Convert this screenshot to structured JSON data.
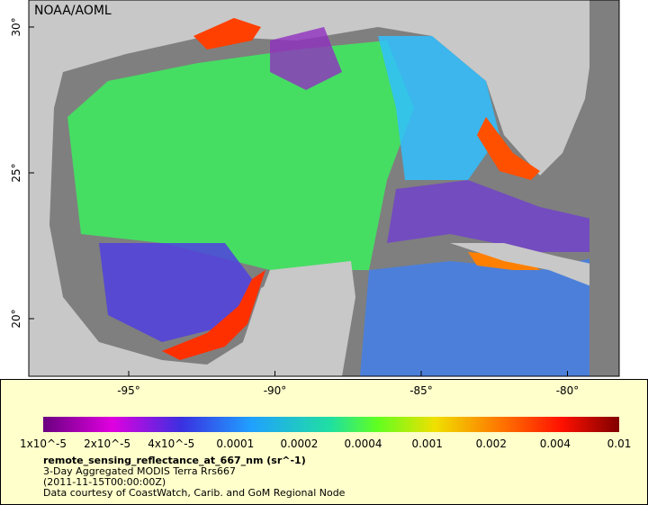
{
  "map": {
    "credit": "NOAA/AOML",
    "lat_ticks": [
      {
        "value": 30,
        "label": "30°"
      },
      {
        "value": 25,
        "label": "25°"
      },
      {
        "value": 20,
        "label": "20°"
      }
    ],
    "lon_ticks": [
      {
        "value": -95,
        "label": "-95°"
      },
      {
        "value": -90,
        "label": "-90°"
      },
      {
        "value": -85,
        "label": "-85°"
      },
      {
        "value": -80,
        "label": "-80°"
      }
    ]
  },
  "colorbar": {
    "labels": [
      "1x10^-5",
      "2x10^-5",
      "4x10^-5",
      "0.0001",
      "0.0002",
      "0.0004",
      "0.001",
      "0.002",
      "0.004",
      "0.01"
    ]
  },
  "caption": {
    "variable": "remote_sensing_reflectance_at_667_nm (sr^-1)",
    "lines": [
      "3-Day Aggregated MODIS Terra Rrs667",
      "(2011-11-15T00:00:00Z)",
      "Data courtesy of CoastWatch, Carib. and GoM Regional Node"
    ]
  }
}
